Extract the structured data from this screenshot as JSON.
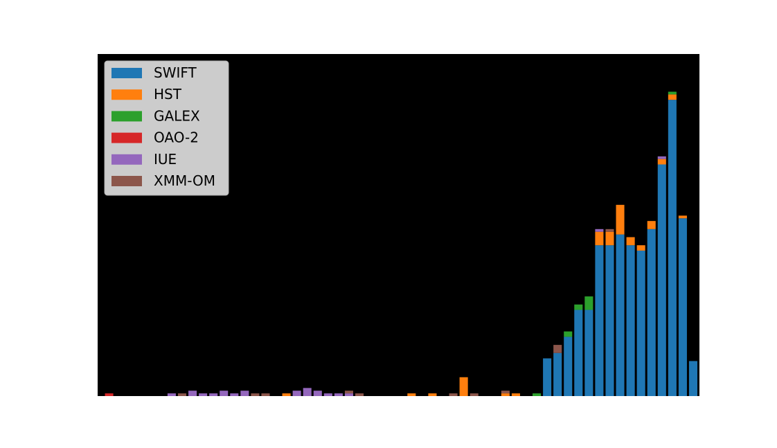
{
  "chart_data": {
    "type": "bar",
    "stacked": true,
    "title": "",
    "xlabel": "",
    "ylabel": "",
    "background": "#000000",
    "legend_position": "top-left",
    "x_start": 1,
    "ylim": [
      0,
      127
    ],
    "series": [
      {
        "name": "SWIFT",
        "color": "#1f77b4",
        "values": [
          0,
          0,
          0,
          0,
          0,
          0,
          0,
          0,
          0,
          0,
          0,
          0,
          0,
          0,
          0,
          0,
          0,
          0,
          0,
          0,
          0,
          0,
          0,
          0,
          0,
          0,
          0,
          0,
          0,
          0,
          0,
          0,
          0,
          0,
          0,
          0,
          0,
          0,
          0,
          0,
          0,
          0,
          14,
          16,
          22,
          32,
          32,
          56,
          56,
          60,
          56,
          54,
          62,
          86,
          110,
          66,
          13
        ]
      },
      {
        "name": "HST",
        "color": "#ff7f0e",
        "values": [
          0,
          0,
          0,
          0,
          0,
          0,
          0,
          0,
          0,
          0,
          0,
          0,
          0,
          0,
          0,
          0,
          0,
          1,
          0,
          0,
          0,
          0,
          0,
          0,
          0,
          0,
          0,
          0,
          0,
          1,
          0,
          1,
          0,
          0,
          7,
          0,
          0,
          0,
          1,
          1,
          0,
          0,
          0,
          0,
          0,
          0,
          0,
          5,
          5,
          11,
          3,
          2,
          3,
          2,
          2,
          1,
          0
        ]
      },
      {
        "name": "GALEX",
        "color": "#2ca02c",
        "values": [
          0,
          0,
          0,
          0,
          0,
          0,
          0,
          0,
          0,
          0,
          0,
          0,
          0,
          0,
          0,
          0,
          0,
          0,
          0,
          0,
          0,
          0,
          0,
          0,
          0,
          0,
          0,
          0,
          0,
          0,
          0,
          0,
          0,
          0,
          0,
          0,
          0,
          0,
          0,
          0,
          0,
          1,
          0,
          0,
          2,
          2,
          5,
          0,
          0,
          0,
          0,
          0,
          0,
          0,
          1,
          0,
          0
        ]
      },
      {
        "name": "OAO-2",
        "color": "#d62728",
        "values": [
          1,
          0,
          0,
          0,
          0,
          0,
          0,
          0,
          0,
          0,
          0,
          0,
          0,
          0,
          0,
          0,
          0,
          0,
          0,
          0,
          0,
          0,
          0,
          0,
          0,
          0,
          0,
          0,
          0,
          0,
          0,
          0,
          0,
          0,
          0,
          0,
          0,
          0,
          0,
          0,
          0,
          0,
          0,
          0,
          0,
          0,
          0,
          0,
          0,
          0,
          0,
          0,
          0,
          0,
          0,
          0,
          0
        ]
      },
      {
        "name": "IUE",
        "color": "#9467bd",
        "values": [
          0,
          0,
          0,
          0,
          0,
          0,
          1,
          0,
          2,
          1,
          1,
          2,
          1,
          2,
          0,
          0,
          0,
          0,
          2,
          3,
          2,
          1,
          1,
          1,
          0,
          0,
          0,
          0,
          0,
          0,
          0,
          0,
          0,
          0,
          0,
          0,
          0,
          0,
          0,
          0,
          0,
          0,
          0,
          0,
          0,
          0,
          0,
          1,
          0,
          0,
          0,
          0,
          0,
          1,
          0,
          0,
          0
        ]
      },
      {
        "name": "XMM-OM",
        "color": "#8c564b",
        "values": [
          0,
          0,
          0,
          0,
          0,
          0,
          0,
          1,
          0,
          0,
          0,
          0,
          0,
          0,
          1,
          1,
          0,
          0,
          0,
          0,
          0,
          0,
          0,
          1,
          1,
          0,
          0,
          0,
          0,
          0,
          0,
          0,
          0,
          1,
          0,
          1,
          0,
          0,
          1,
          0,
          0,
          0,
          0,
          3,
          0,
          0,
          0,
          0,
          1,
          0,
          0,
          0,
          0,
          0,
          0,
          0,
          0
        ]
      }
    ]
  }
}
